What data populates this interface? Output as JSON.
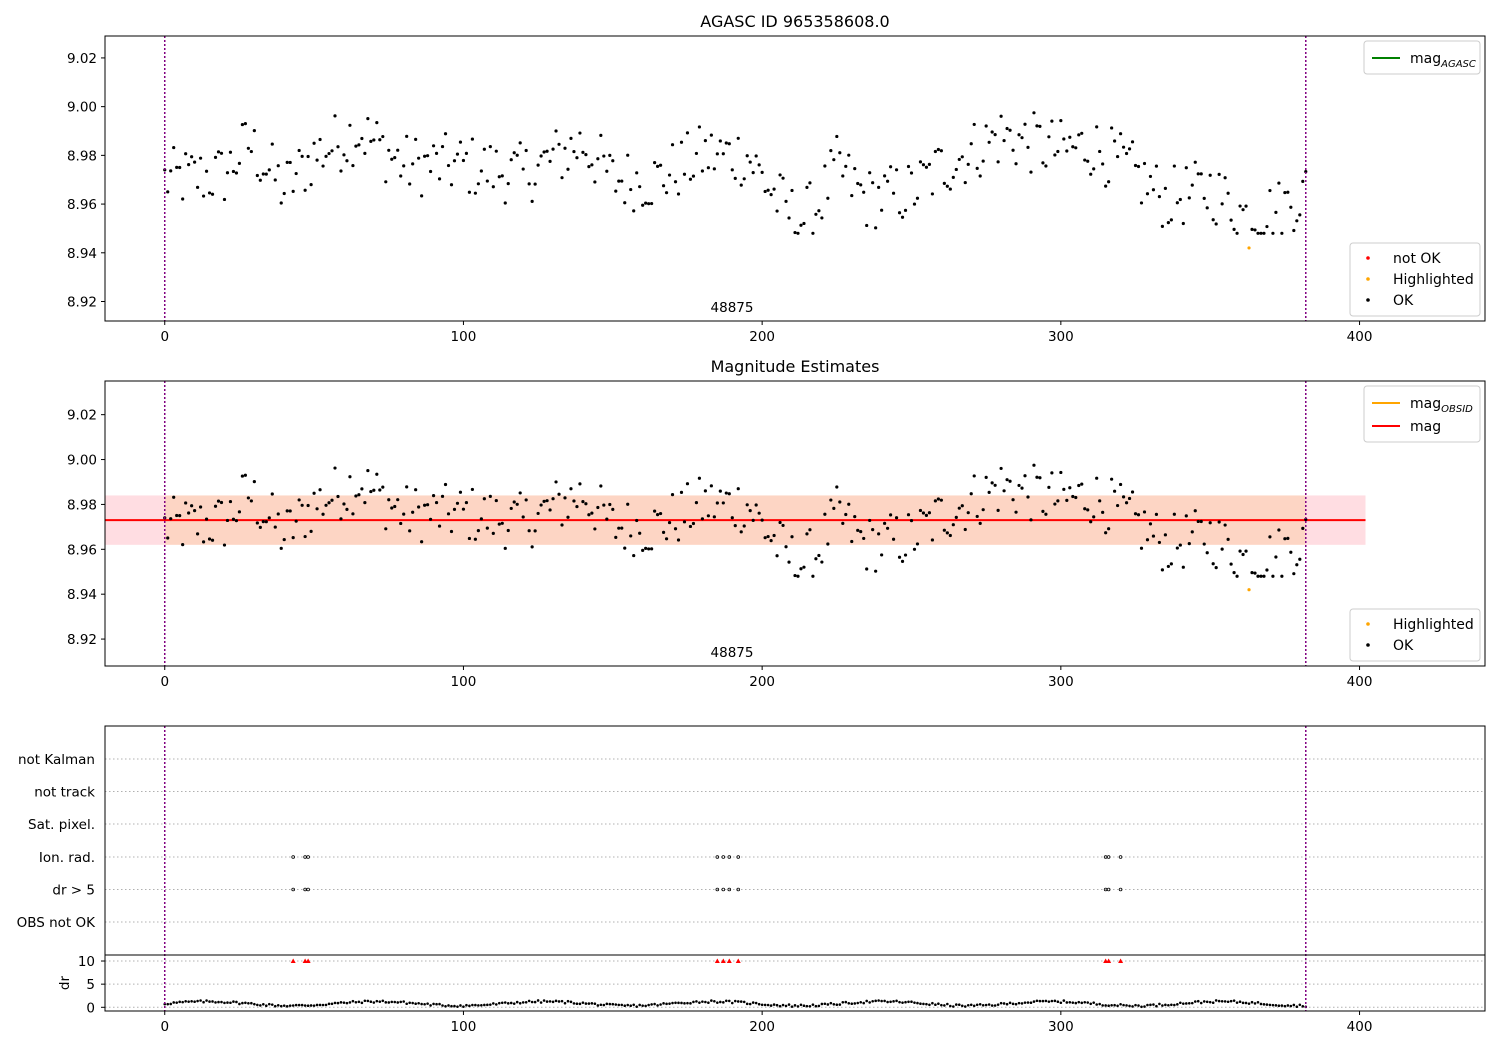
{
  "chart_data": [
    {
      "type": "scatter",
      "title": "AGASC ID 965358608.0",
      "xlim": [
        -20,
        442
      ],
      "ylim": [
        8.912,
        9.029
      ],
      "xticks": [
        0,
        100,
        200,
        300,
        400
      ],
      "yticks": [
        8.92,
        8.94,
        8.96,
        8.98,
        9.0,
        9.02
      ],
      "grid": false,
      "annotation": "48875",
      "vlines": [
        0,
        382
      ],
      "legend_top": {
        "placement": "top-right",
        "entries": [
          {
            "label": "mag",
            "sub": "AGASC",
            "color": "#008000"
          }
        ]
      },
      "legend_bottom": {
        "placement": "bottom-right",
        "entries": [
          {
            "label": "not OK",
            "color": "#ff0000"
          },
          {
            "label": "Highlighted",
            "color": "#ffa500"
          },
          {
            "label": "OK",
            "color": "#000000"
          }
        ]
      },
      "highlighted_point": {
        "x": 363,
        "y": 8.942
      }
    },
    {
      "type": "scatter",
      "title": "Magnitude Estimates",
      "xlim": [
        -20,
        442
      ],
      "ylim": [
        8.908,
        9.035
      ],
      "xticks": [
        0,
        100,
        200,
        300,
        400
      ],
      "yticks": [
        8.92,
        8.94,
        8.96,
        8.98,
        9.0,
        9.02
      ],
      "grid": false,
      "annotation": "48875",
      "vlines": [
        0,
        382
      ],
      "mag": 8.973,
      "mag_band": [
        8.962,
        8.984
      ],
      "band_xrange": [
        -20,
        402
      ],
      "legend_top": {
        "placement": "top-right",
        "entries": [
          {
            "label": "mag",
            "sub": "OBSID",
            "color": "#ffa500"
          },
          {
            "label": "mag",
            "sub": "",
            "color": "#ff0000"
          }
        ]
      },
      "legend_bottom": {
        "placement": "bottom-right",
        "entries": [
          {
            "label": "Highlighted",
            "color": "#ffa500"
          },
          {
            "label": "OK",
            "color": "#000000"
          }
        ]
      },
      "highlighted_point": {
        "x": 363,
        "y": 8.942
      }
    },
    {
      "type": "scatter",
      "xlim": [
        -20,
        442
      ],
      "xticks": [
        0,
        100,
        200,
        300,
        400
      ],
      "flags": [
        "not Kalman",
        "not track",
        "Sat. pixel.",
        "Ion. rad.",
        "dr > 5",
        "OBS not OK"
      ],
      "flag_points": {
        "Ion. rad.": [
          43,
          47,
          48,
          185,
          187,
          189,
          192,
          315,
          316,
          320
        ],
        "dr > 5": [
          43,
          47,
          48,
          185,
          187,
          189,
          192,
          315,
          316,
          320
        ]
      },
      "dr": {
        "ylabel": "dr",
        "yticks": [
          0,
          5,
          10
        ],
        "ylim": [
          -0.8,
          11.3
        ],
        "high_x": [
          43,
          47,
          48,
          185,
          187,
          189,
          192,
          315,
          316,
          320
        ],
        "high_y": 10
      },
      "vlines": [
        0,
        382
      ]
    }
  ]
}
